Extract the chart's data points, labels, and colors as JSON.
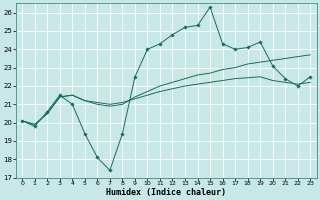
{
  "xlabel": "Humidex (Indice chaleur)",
  "bg_color": "#c8e8e8",
  "grid_color": "#b0d8d8",
  "line_color": "#1a6b5a",
  "xlim": [
    -0.5,
    23.5
  ],
  "ylim": [
    17,
    26.5
  ],
  "yticks": [
    17,
    18,
    19,
    20,
    21,
    22,
    23,
    24,
    25,
    26
  ],
  "xticks": [
    0,
    1,
    2,
    3,
    4,
    5,
    6,
    7,
    8,
    9,
    10,
    11,
    12,
    13,
    14,
    15,
    16,
    17,
    18,
    19,
    20,
    21,
    22,
    23
  ],
  "line1_x": [
    0,
    1,
    2,
    3,
    4,
    5,
    6,
    7,
    8,
    9,
    10,
    11,
    12,
    13,
    14,
    15,
    16,
    17,
    18,
    19,
    20,
    21,
    22,
    23
  ],
  "line1_y": [
    20.1,
    19.8,
    20.6,
    21.5,
    21.0,
    19.4,
    18.1,
    17.4,
    19.4,
    22.5,
    24.0,
    24.3,
    24.8,
    25.2,
    25.3,
    26.3,
    24.3,
    24.0,
    24.1,
    24.4,
    23.1,
    22.4,
    22.0,
    22.5
  ],
  "line2_x": [
    0,
    1,
    2,
    3,
    4,
    5,
    6,
    7,
    8,
    9,
    10,
    11,
    12,
    13,
    14,
    15,
    16,
    17,
    18,
    19,
    20,
    21,
    22,
    23
  ],
  "line2_y": [
    20.1,
    19.9,
    20.5,
    21.4,
    21.5,
    21.2,
    21.0,
    20.9,
    21.0,
    21.4,
    21.7,
    22.0,
    22.2,
    22.4,
    22.6,
    22.7,
    22.9,
    23.0,
    23.2,
    23.3,
    23.4,
    23.5,
    23.6,
    23.7
  ],
  "line3_x": [
    0,
    1,
    2,
    3,
    4,
    5,
    6,
    7,
    8,
    9,
    10,
    11,
    12,
    13,
    14,
    15,
    16,
    17,
    18,
    19,
    20,
    21,
    22,
    23
  ],
  "line3_y": [
    20.1,
    19.9,
    20.5,
    21.4,
    21.5,
    21.2,
    21.1,
    21.0,
    21.1,
    21.3,
    21.5,
    21.7,
    21.85,
    22.0,
    22.1,
    22.2,
    22.3,
    22.4,
    22.45,
    22.5,
    22.3,
    22.2,
    22.1,
    22.2
  ]
}
